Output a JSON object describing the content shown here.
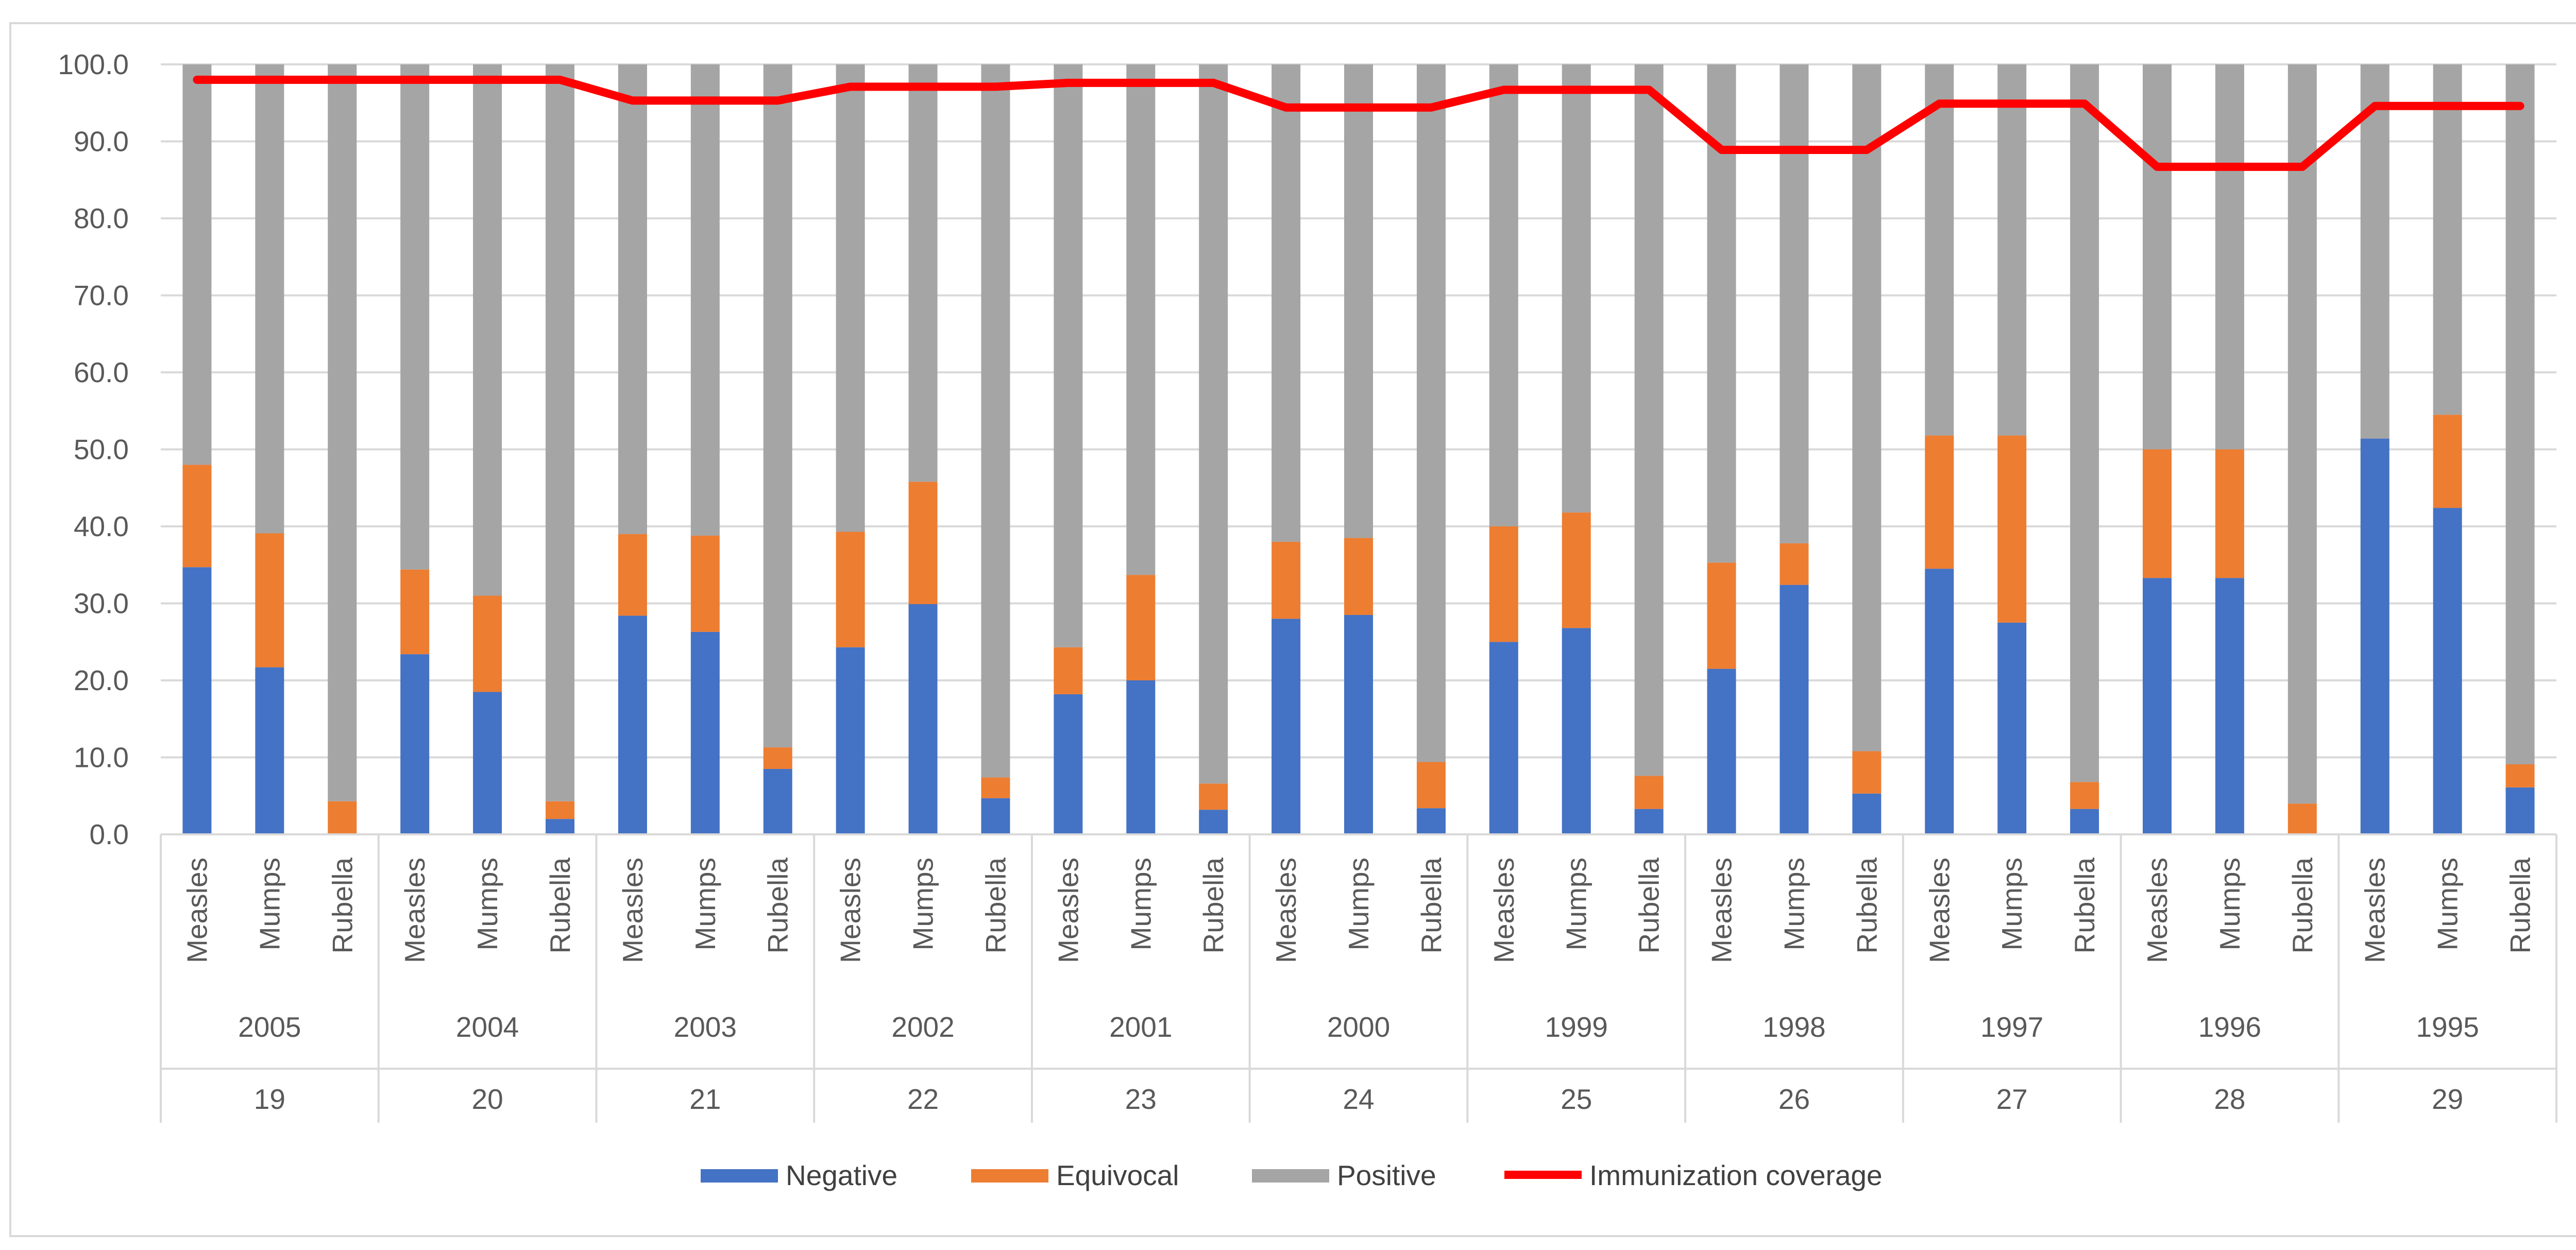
{
  "chart_data": {
    "type": "bar",
    "stacked": true,
    "title": "",
    "xlabel": "",
    "ylabel": "",
    "ylim": [
      0,
      100
    ],
    "y_ticks": [
      "0.0",
      "10.0",
      "20.0",
      "30.0",
      "40.0",
      "50.0",
      "60.0",
      "70.0",
      "80.0",
      "90.0",
      "100.0"
    ],
    "gridlines": true,
    "legend_position": "bottom",
    "groups": [
      {
        "year": "2005",
        "age": "19",
        "coverage": 98.0,
        "diseases": [
          {
            "name": "Measles",
            "negative": 34.7,
            "equivocal": 13.3
          },
          {
            "name": "Mumps",
            "negative": 21.7,
            "equivocal": 17.4
          },
          {
            "name": "Rubella",
            "negative": 0.0,
            "equivocal": 4.3
          }
        ]
      },
      {
        "year": "2004",
        "age": "20",
        "coverage": 98.0,
        "diseases": [
          {
            "name": "Measles",
            "negative": 23.4,
            "equivocal": 11.0
          },
          {
            "name": "Mumps",
            "negative": 18.5,
            "equivocal": 12.5
          },
          {
            "name": "Rubella",
            "negative": 2.0,
            "equivocal": 2.3
          }
        ]
      },
      {
        "year": "2003",
        "age": "21",
        "coverage": 95.3,
        "diseases": [
          {
            "name": "Measles",
            "negative": 28.4,
            "equivocal": 10.6
          },
          {
            "name": "Mumps",
            "negative": 26.3,
            "equivocal": 12.5
          },
          {
            "name": "Rubella",
            "negative": 8.5,
            "equivocal": 2.8
          }
        ]
      },
      {
        "year": "2002",
        "age": "22",
        "coverage": 97.1,
        "diseases": [
          {
            "name": "Measles",
            "negative": 24.3,
            "equivocal": 15.0
          },
          {
            "name": "Mumps",
            "negative": 29.9,
            "equivocal": 15.9
          },
          {
            "name": "Rubella",
            "negative": 4.7,
            "equivocal": 2.7
          }
        ]
      },
      {
        "year": "2001",
        "age": "23",
        "coverage": 97.6,
        "diseases": [
          {
            "name": "Measles",
            "negative": 18.2,
            "equivocal": 6.1
          },
          {
            "name": "Mumps",
            "negative": 20.0,
            "equivocal": 13.7
          },
          {
            "name": "Rubella",
            "negative": 3.2,
            "equivocal": 3.4
          }
        ]
      },
      {
        "year": "2000",
        "age": "24",
        "coverage": 94.4,
        "diseases": [
          {
            "name": "Measles",
            "negative": 28.0,
            "equivocal": 10.0
          },
          {
            "name": "Mumps",
            "negative": 28.5,
            "equivocal": 10.0
          },
          {
            "name": "Rubella",
            "negative": 3.4,
            "equivocal": 6.0
          }
        ]
      },
      {
        "year": "1999",
        "age": "25",
        "coverage": 96.7,
        "diseases": [
          {
            "name": "Measles",
            "negative": 25.0,
            "equivocal": 15.0
          },
          {
            "name": "Mumps",
            "negative": 26.8,
            "equivocal": 15.0
          },
          {
            "name": "Rubella",
            "negative": 3.3,
            "equivocal": 4.3
          }
        ]
      },
      {
        "year": "1998",
        "age": "26",
        "coverage": 88.9,
        "diseases": [
          {
            "name": "Measles",
            "negative": 21.5,
            "equivocal": 13.8
          },
          {
            "name": "Mumps",
            "negative": 32.4,
            "equivocal": 5.4
          },
          {
            "name": "Rubella",
            "negative": 5.3,
            "equivocal": 5.5
          }
        ]
      },
      {
        "year": "1997",
        "age": "27",
        "coverage": 94.9,
        "diseases": [
          {
            "name": "Measles",
            "negative": 34.5,
            "equivocal": 17.3
          },
          {
            "name": "Mumps",
            "negative": 27.5,
            "equivocal": 24.3
          },
          {
            "name": "Rubella",
            "negative": 3.3,
            "equivocal": 3.5
          }
        ]
      },
      {
        "year": "1996",
        "age": "28",
        "coverage": 86.7,
        "diseases": [
          {
            "name": "Measles",
            "negative": 33.3,
            "equivocal": 16.7
          },
          {
            "name": "Mumps",
            "negative": 33.3,
            "equivocal": 16.7
          },
          {
            "name": "Rubella",
            "negative": 0.0,
            "equivocal": 4.0
          }
        ]
      },
      {
        "year": "1995",
        "age": "29",
        "coverage": 94.6,
        "diseases": [
          {
            "name": "Measles",
            "negative": 51.4,
            "equivocal": 0.0
          },
          {
            "name": "Mumps",
            "negative": 42.4,
            "equivocal": 12.1
          },
          {
            "name": "Rubella",
            "negative": 6.1,
            "equivocal": 3.0
          }
        ]
      }
    ],
    "series": [
      {
        "name": "Negative",
        "kind": "bar",
        "color": "#4472C4"
      },
      {
        "name": "Equivocal",
        "kind": "bar",
        "color": "#ED7D31"
      },
      {
        "name": "Positive",
        "kind": "bar",
        "color": "#A5A5A5"
      },
      {
        "name": "Immunization coverage",
        "kind": "line",
        "color": "#FF0000"
      }
    ],
    "legend": [
      "Negative",
      "Equivocal",
      "Positive",
      "Immunization coverage"
    ]
  }
}
